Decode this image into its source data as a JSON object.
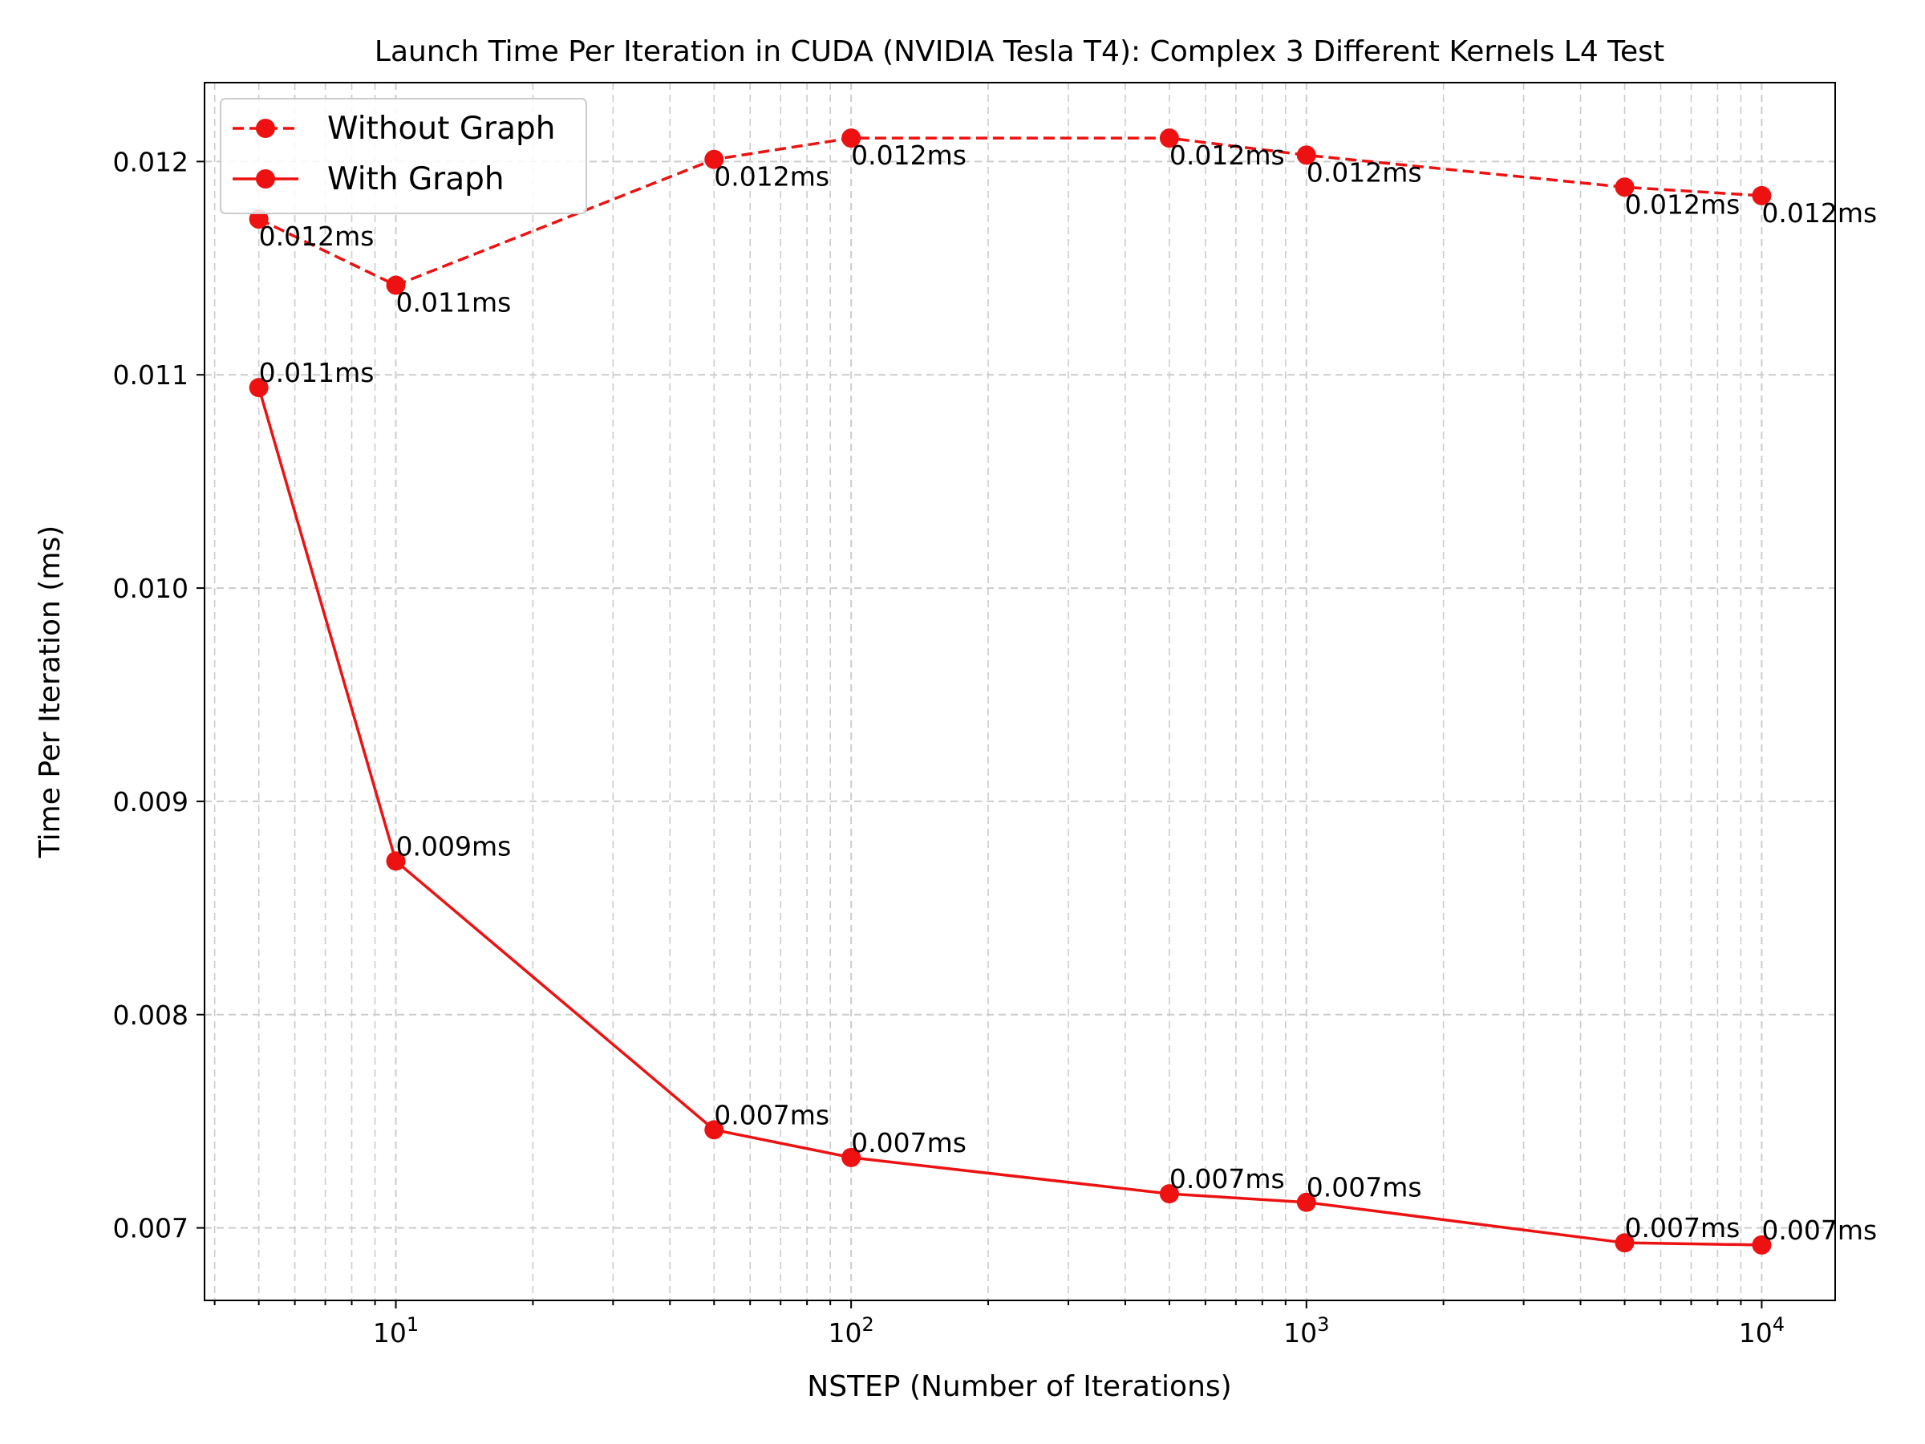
{
  "chart_data": {
    "type": "line",
    "title": "Launch Time Per Iteration in CUDA (NVIDIA Tesla T4): Complex 3 Different Kernels L4 Test",
    "xlabel": "NSTEP (Number of Iterations)",
    "ylabel": "Time Per Iteration (ms)",
    "xscale": "log",
    "xlim": [
      3.8,
      14500
    ],
    "ylim": [
      0.00666,
      0.01237
    ],
    "x": [
      5,
      10,
      50,
      100,
      500,
      1000,
      5000,
      10000
    ],
    "x_ticks": [
      {
        "value": 10,
        "base": "10",
        "exp": "1"
      },
      {
        "value": 100,
        "base": "10",
        "exp": "2"
      },
      {
        "value": 1000,
        "base": "10",
        "exp": "3"
      },
      {
        "value": 10000,
        "base": "10",
        "exp": "4"
      }
    ],
    "y_ticks": [
      {
        "value": 0.007,
        "label": "0.007"
      },
      {
        "value": 0.008,
        "label": "0.008"
      },
      {
        "value": 0.009,
        "label": "0.009"
      },
      {
        "value": 0.01,
        "label": "0.010"
      },
      {
        "value": 0.011,
        "label": "0.011"
      },
      {
        "value": 0.012,
        "label": "0.012"
      }
    ],
    "grid": true,
    "legend_position": "top-left",
    "series": [
      {
        "name": "Without Graph",
        "style": "dashed",
        "color": "#ee1111",
        "label_position": "below",
        "values": [
          0.01173,
          0.01142,
          0.01201,
          0.01211,
          0.01211,
          0.01203,
          0.01188,
          0.01184
        ],
        "labels": [
          "0.012ms",
          "0.011ms",
          "0.012ms",
          "0.012ms",
          "0.012ms",
          "0.012ms",
          "0.012ms",
          "0.012ms"
        ]
      },
      {
        "name": "With Graph",
        "style": "solid",
        "color": "#ee1111",
        "label_position": "above",
        "values": [
          0.01094,
          0.00872,
          0.00746,
          0.00733,
          0.00716,
          0.00712,
          0.00693,
          0.00692
        ],
        "labels": [
          "0.011ms",
          "0.009ms",
          "0.007ms",
          "0.007ms",
          "0.007ms",
          "0.007ms",
          "0.007ms",
          "0.007ms"
        ]
      }
    ]
  }
}
